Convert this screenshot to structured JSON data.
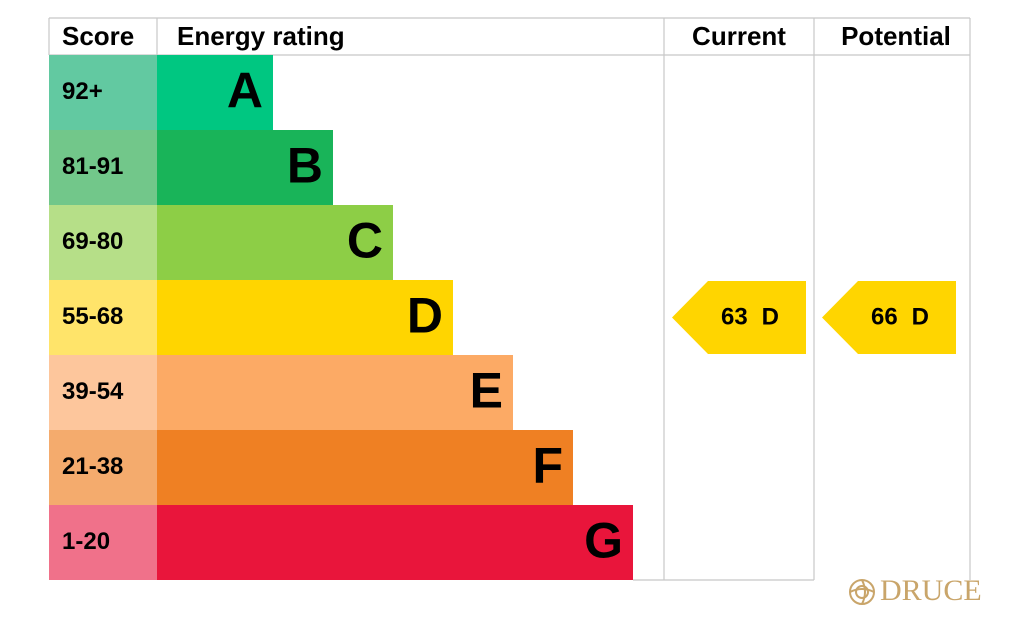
{
  "header": {
    "score": "Score",
    "rating": "Energy rating",
    "current": "Current",
    "potential": "Potential"
  },
  "bands": [
    {
      "score": "92+",
      "letter": "A",
      "color": "#00c781",
      "score_color": "#62c9a1"
    },
    {
      "score": "81-91",
      "letter": "B",
      "color": "#19b459",
      "score_color": "#72c78a"
    },
    {
      "score": "69-80",
      "letter": "C",
      "color": "#8dce46",
      "score_color": "#b6df88"
    },
    {
      "score": "55-68",
      "letter": "D",
      "color": "#ffd500",
      "score_color": "#ffe46a"
    },
    {
      "score": "39-54",
      "letter": "E",
      "color": "#fcaa65",
      "score_color": "#fdc69c"
    },
    {
      "score": "21-38",
      "letter": "F",
      "color": "#ef8023",
      "score_color": "#f4ab6d"
    },
    {
      "score": "1-20",
      "letter": "G",
      "color": "#e9153b",
      "score_color": "#f0718a"
    }
  ],
  "current": {
    "value": 63,
    "letter": "D"
  },
  "potential": {
    "value": 66,
    "letter": "D"
  },
  "logo": "DRUCE"
}
